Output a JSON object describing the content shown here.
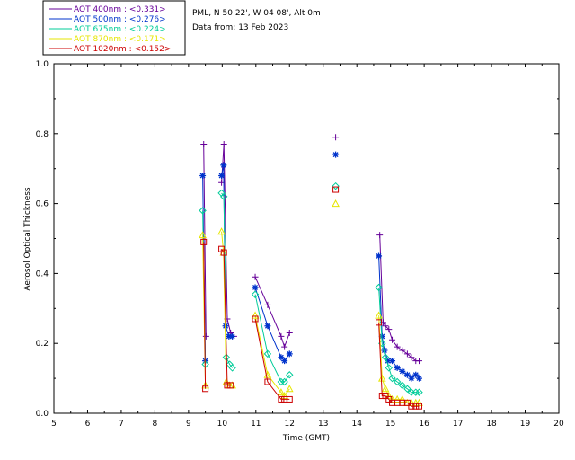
{
  "chart_data": {
    "type": "scatter",
    "title": "",
    "xlabel": "Time (GMT)",
    "ylabel": "Aerosol Optical Thickness",
    "xlim": [
      5,
      20
    ],
    "ylim": [
      0.0,
      1.0
    ],
    "x_ticks": [
      "5",
      "6",
      "7",
      "8",
      "9",
      "10",
      "11",
      "12",
      "13",
      "14",
      "15",
      "16",
      "17",
      "18",
      "19",
      "20"
    ],
    "y_ticks": [
      "0.0",
      "0.2",
      "0.4",
      "0.6",
      "0.8",
      "1.0"
    ],
    "info_lines": [
      "PML, N 50 22', W 04 08', Alt 0m",
      "Data from: 13 Feb 2023"
    ],
    "legend": [
      {
        "label": "AOT  400nm : <0.331>",
        "color": "#660099"
      },
      {
        "label": "AOT  500nm : <0.276>",
        "color": "#0033cc"
      },
      {
        "label": "AOT  675nm : <0.224>",
        "color": "#00cc99"
      },
      {
        "label": "AOT  870nm : <0.171>",
        "color": "#e6e600"
      },
      {
        "label": "AOT 1020nm : <0.152>",
        "color": "#cc0000"
      }
    ],
    "series": [
      {
        "name": "AOT 400nm",
        "color": "#660099",
        "marker": "plus",
        "x": [
          9.45,
          9.52,
          9.98,
          10.05,
          10.15,
          10.25,
          10.35,
          10.98,
          11.35,
          11.75,
          11.85,
          12.0,
          13.37,
          14.68,
          14.78,
          14.85,
          14.95,
          15.05,
          15.2,
          15.35,
          15.5,
          15.62,
          15.75,
          15.85
        ],
        "y": [
          0.77,
          0.22,
          0.66,
          0.77,
          0.27,
          0.23,
          0.22,
          0.39,
          0.31,
          0.22,
          0.19,
          0.23,
          0.79,
          0.51,
          0.26,
          0.25,
          0.24,
          0.21,
          0.19,
          0.18,
          0.17,
          0.16,
          0.15,
          0.15
        ]
      },
      {
        "name": "AOT 500nm",
        "color": "#0033cc",
        "marker": "asterisk",
        "x": [
          9.42,
          9.5,
          9.98,
          10.04,
          10.1,
          10.2,
          10.3,
          10.98,
          11.35,
          11.75,
          11.85,
          12.0,
          13.37,
          14.65,
          14.75,
          14.82,
          14.92,
          15.05,
          15.2,
          15.35,
          15.5,
          15.62,
          15.75,
          15.85
        ],
        "y": [
          0.68,
          0.15,
          0.68,
          0.71,
          0.25,
          0.22,
          0.22,
          0.36,
          0.25,
          0.16,
          0.15,
          0.17,
          0.74,
          0.45,
          0.22,
          0.18,
          0.15,
          0.15,
          0.13,
          0.12,
          0.11,
          0.1,
          0.11,
          0.1
        ]
      },
      {
        "name": "AOT 675nm",
        "color": "#00cc99",
        "marker": "diamond",
        "x": [
          9.42,
          9.5,
          9.98,
          10.05,
          10.12,
          10.22,
          10.3,
          10.98,
          11.35,
          11.75,
          11.85,
          12.0,
          13.37,
          14.65,
          14.75,
          14.85,
          14.95,
          15.05,
          15.2,
          15.35,
          15.5,
          15.62,
          15.75,
          15.85
        ],
        "y": [
          0.58,
          0.14,
          0.63,
          0.62,
          0.16,
          0.14,
          0.13,
          0.34,
          0.17,
          0.09,
          0.09,
          0.11,
          0.65,
          0.36,
          0.2,
          0.16,
          0.13,
          0.1,
          0.09,
          0.08,
          0.07,
          0.06,
          0.06,
          0.06
        ]
      },
      {
        "name": "AOT 870nm",
        "color": "#e6e600",
        "marker": "triangle",
        "x": [
          9.42,
          9.5,
          9.98,
          10.04,
          10.12,
          10.22,
          10.3,
          10.98,
          11.35,
          11.75,
          11.85,
          12.0,
          13.37,
          14.65,
          14.75,
          14.85,
          14.95,
          15.05,
          15.2,
          15.35,
          15.5,
          15.62,
          15.75,
          15.85
        ],
        "y": [
          0.51,
          0.08,
          0.52,
          0.46,
          0.09,
          0.08,
          0.08,
          0.28,
          0.11,
          0.06,
          0.05,
          0.07,
          0.6,
          0.28,
          0.1,
          0.07,
          0.05,
          0.04,
          0.04,
          0.04,
          0.03,
          0.03,
          0.03,
          0.03
        ]
      },
      {
        "name": "AOT 1020nm",
        "color": "#cc0000",
        "marker": "square",
        "x": [
          9.45,
          9.5,
          9.98,
          10.05,
          10.15,
          10.25,
          10.98,
          11.35,
          11.75,
          11.85,
          12.0,
          13.37,
          14.65,
          14.75,
          14.85,
          14.95,
          15.05,
          15.2,
          15.35,
          15.5,
          15.62,
          15.75,
          15.85
        ],
        "y": [
          0.49,
          0.07,
          0.47,
          0.46,
          0.08,
          0.08,
          0.27,
          0.09,
          0.04,
          0.04,
          0.04,
          0.64,
          0.26,
          0.05,
          0.05,
          0.04,
          0.03,
          0.03,
          0.03,
          0.03,
          0.02,
          0.02,
          0.02
        ]
      }
    ]
  }
}
